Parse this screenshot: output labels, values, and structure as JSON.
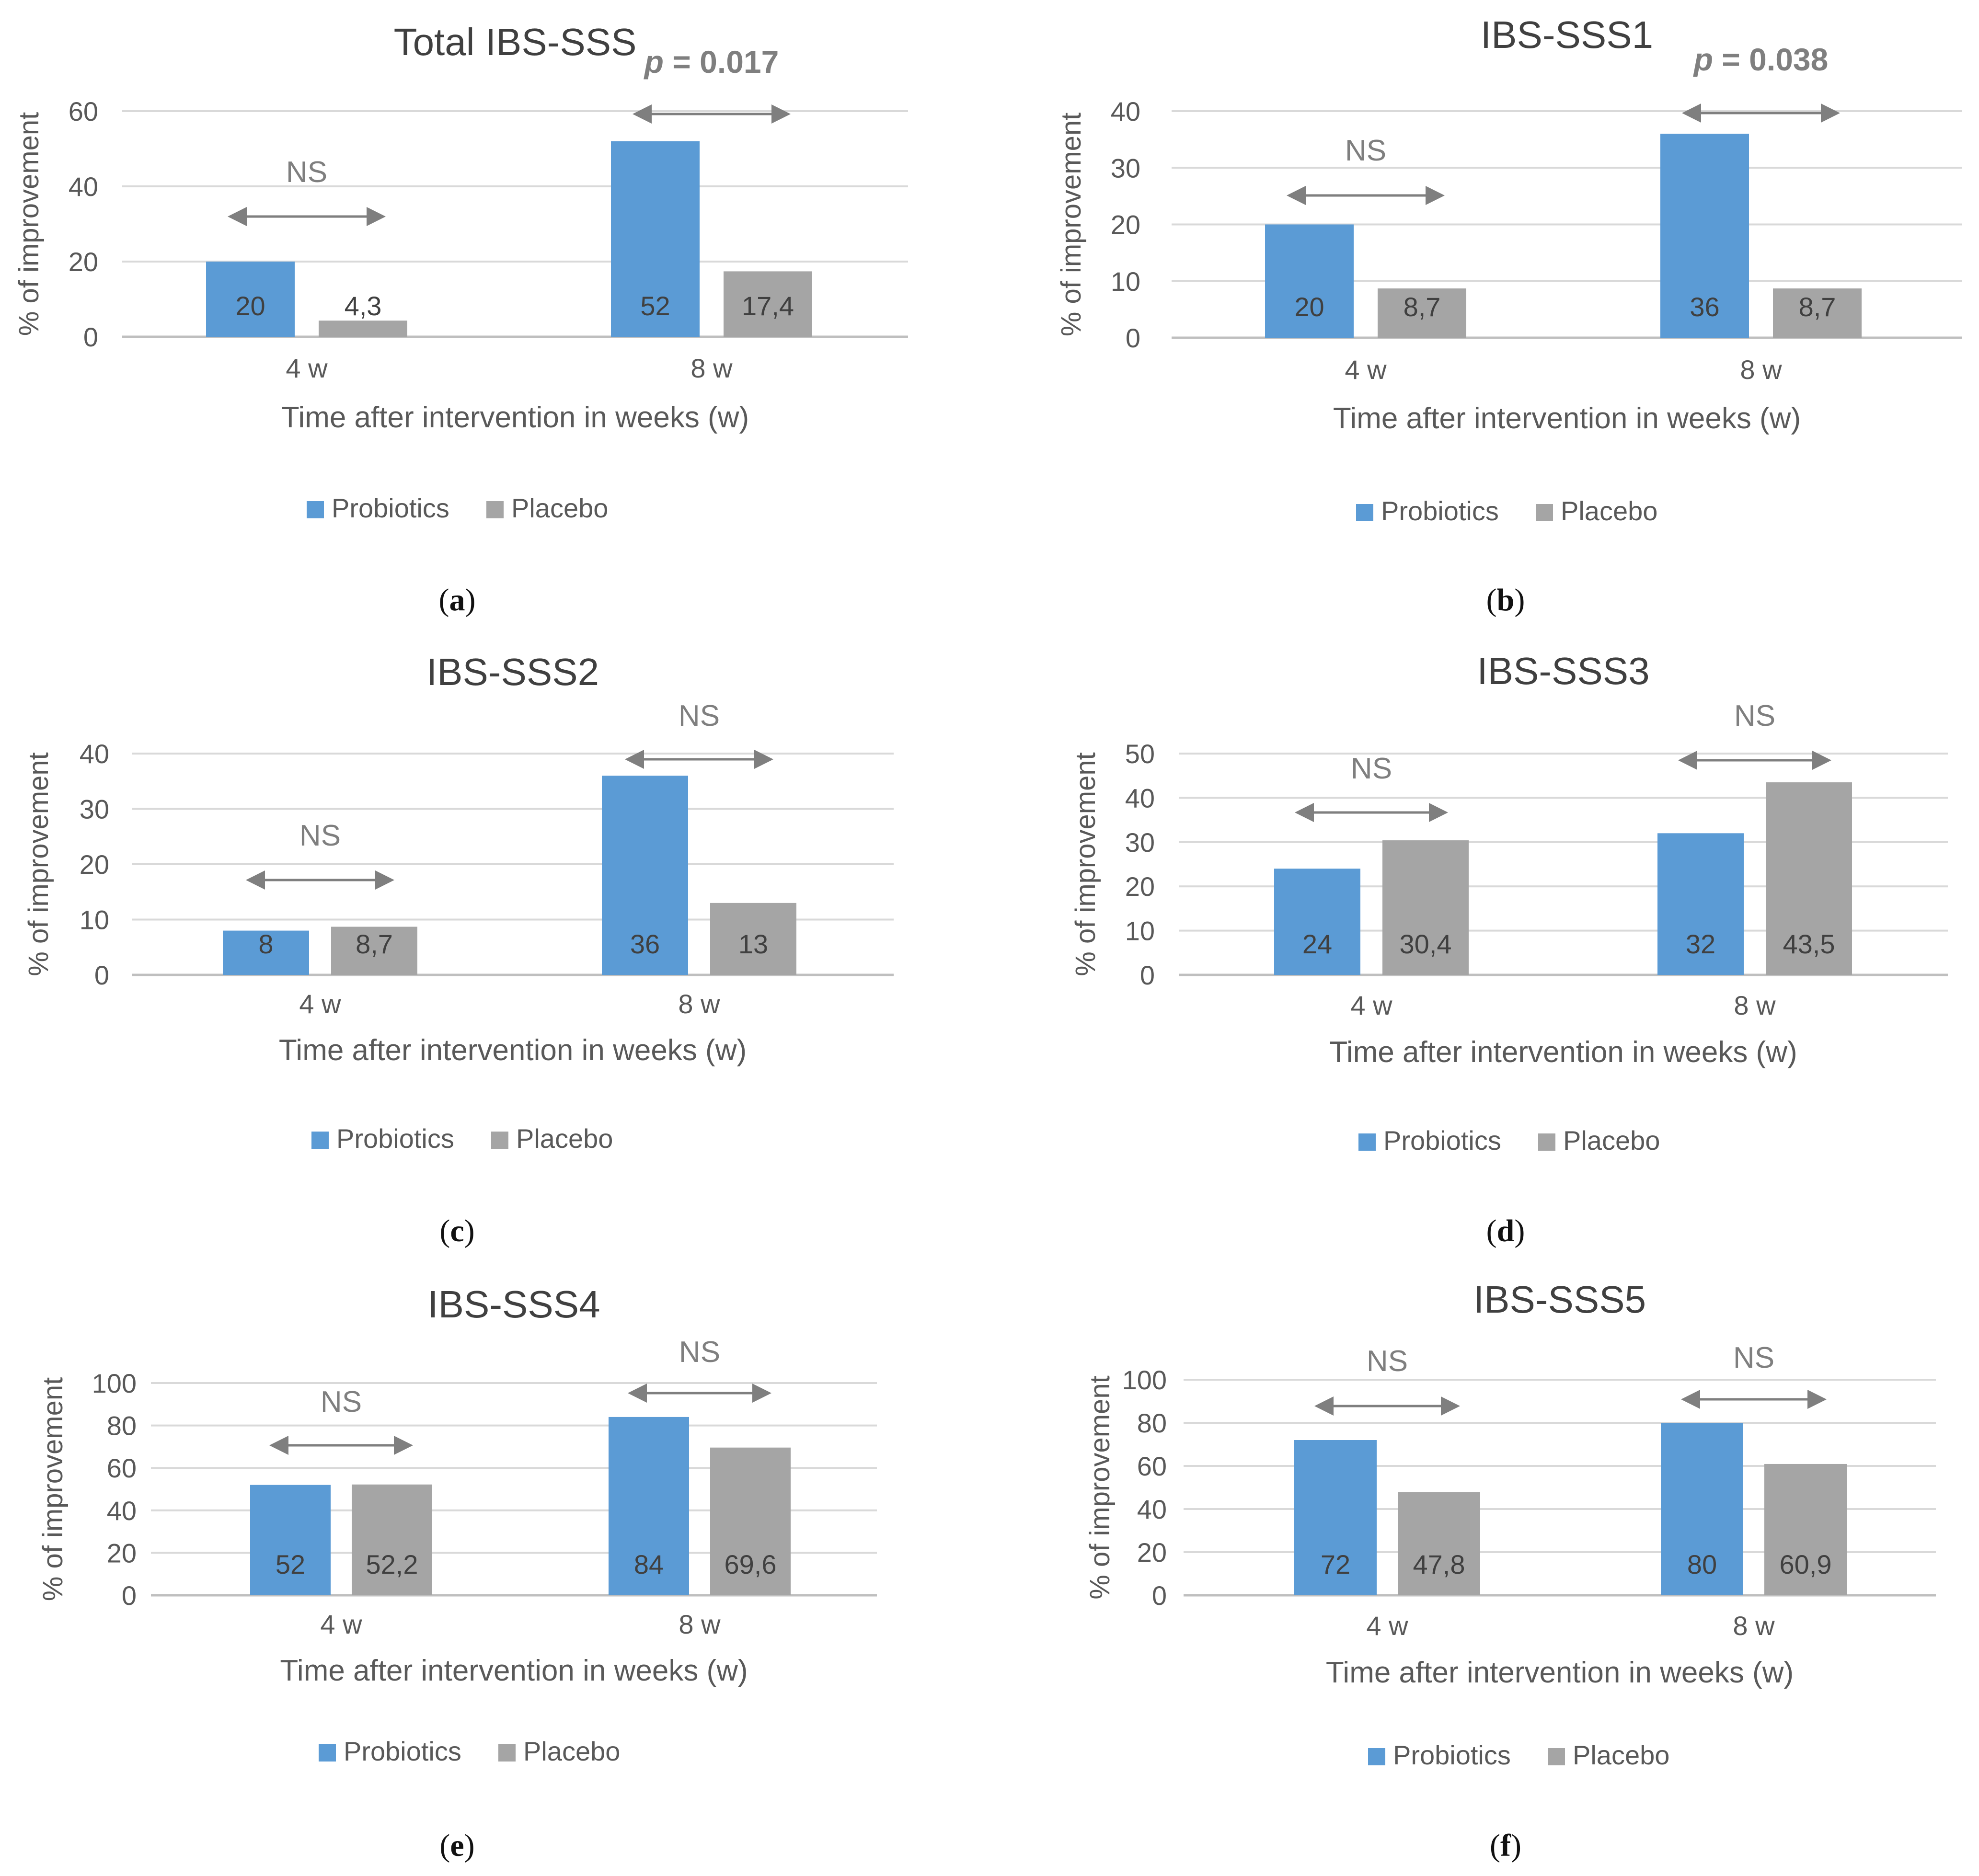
{
  "figure": {
    "panel_labels": [
      "a",
      "b",
      "c",
      "d",
      "e",
      "f"
    ]
  },
  "colors": {
    "probiotics": "#5b9bd5",
    "placebo": "#a5a5a5",
    "axis_text": "#595959",
    "grid": "#d9d9d9",
    "arrow": "#7f7f7f",
    "title": "#404040",
    "bar_label": "#404040"
  },
  "chart_data": [
    {
      "type": "bar",
      "title": "Total IBS-SSS",
      "xlabel": "Time after intervention in weeks (w)",
      "ylabel": "% of improvement",
      "categories": [
        "4 w",
        "8 w"
      ],
      "ylim": [
        0,
        60
      ],
      "yticks": [
        0,
        20,
        40,
        60
      ],
      "series": [
        {
          "name": "Probiotics",
          "values": [
            20,
            52
          ],
          "labels": [
            "20",
            "52"
          ]
        },
        {
          "name": "Placebo",
          "values": [
            4.3,
            17.4
          ],
          "labels": [
            "4,3",
            "17,4"
          ]
        }
      ],
      "annotations": [
        {
          "category": "4 w",
          "text": "NS"
        },
        {
          "category": "8 w",
          "text": "p = 0.017"
        }
      ],
      "legend": "bottom"
    },
    {
      "type": "bar",
      "title": "IBS-SSS1",
      "xlabel": "Time after intervention in weeks (w)",
      "ylabel": "% of improvement",
      "categories": [
        "4 w",
        "8 w"
      ],
      "ylim": [
        0,
        40
      ],
      "yticks": [
        0,
        10,
        20,
        30,
        40
      ],
      "series": [
        {
          "name": "Probiotics",
          "values": [
            20,
            36
          ],
          "labels": [
            "20",
            "36"
          ]
        },
        {
          "name": "Placebo",
          "values": [
            8.7,
            8.7
          ],
          "labels": [
            "8,7",
            "8,7"
          ]
        }
      ],
      "annotations": [
        {
          "category": "4 w",
          "text": "NS"
        },
        {
          "category": "8 w",
          "text": "p = 0.038"
        }
      ],
      "legend": "bottom"
    },
    {
      "type": "bar",
      "title": "IBS-SSS2",
      "xlabel": "Time after intervention in weeks (w)",
      "ylabel": "% of improvement",
      "categories": [
        "4 w",
        "8 w"
      ],
      "ylim": [
        0,
        40
      ],
      "yticks": [
        0,
        10,
        20,
        30,
        40
      ],
      "series": [
        {
          "name": "Probiotics",
          "values": [
            8,
            36
          ],
          "labels": [
            "8",
            "36"
          ]
        },
        {
          "name": "Placebo",
          "values": [
            8.7,
            13
          ],
          "labels": [
            "8,7",
            "13"
          ]
        }
      ],
      "annotations": [
        {
          "category": "4 w",
          "text": "NS"
        },
        {
          "category": "8 w",
          "text": "NS"
        }
      ],
      "legend": "bottom"
    },
    {
      "type": "bar",
      "title": "IBS-SSS3",
      "xlabel": "Time after intervention in weeks (w)",
      "ylabel": "% of improvement",
      "categories": [
        "4 w",
        "8 w"
      ],
      "ylim": [
        0,
        50
      ],
      "yticks": [
        0,
        10,
        20,
        30,
        40,
        50
      ],
      "series": [
        {
          "name": "Probiotics",
          "values": [
            24,
            32
          ],
          "labels": [
            "24",
            "32"
          ]
        },
        {
          "name": "Placebo",
          "values": [
            30.4,
            43.5
          ],
          "labels": [
            "30,4",
            "43,5"
          ]
        }
      ],
      "annotations": [
        {
          "category": "4 w",
          "text": "NS"
        },
        {
          "category": "8 w",
          "text": "NS"
        }
      ],
      "legend": "bottom"
    },
    {
      "type": "bar",
      "title": "IBS-SSS4",
      "xlabel": "Time after intervention in weeks (w)",
      "ylabel": "% of improvement",
      "categories": [
        "4 w",
        "8 w"
      ],
      "ylim": [
        0,
        100
      ],
      "yticks": [
        0,
        20,
        40,
        60,
        80,
        100
      ],
      "series": [
        {
          "name": "Probiotics",
          "values": [
            52,
            84
          ],
          "labels": [
            "52",
            "84"
          ]
        },
        {
          "name": "Placebo",
          "values": [
            52.2,
            69.6
          ],
          "labels": [
            "52,2",
            "69,6"
          ]
        }
      ],
      "annotations": [
        {
          "category": "4 w",
          "text": "NS"
        },
        {
          "category": "8 w",
          "text": "NS"
        }
      ],
      "legend": "bottom"
    },
    {
      "type": "bar",
      "title": "IBS-SSS5",
      "xlabel": "Time after intervention in weeks (w)",
      "ylabel": "% of improvement",
      "categories": [
        "4 w",
        "8 w"
      ],
      "ylim": [
        0,
        100
      ],
      "yticks": [
        0,
        20,
        40,
        60,
        80,
        100
      ],
      "series": [
        {
          "name": "Probiotics",
          "values": [
            72,
            80
          ],
          "labels": [
            "72",
            "80"
          ]
        },
        {
          "name": "Placebo",
          "values": [
            47.8,
            60.9
          ],
          "labels": [
            "47,8",
            "60,9"
          ]
        }
      ],
      "annotations": [
        {
          "category": "4 w",
          "text": "NS"
        },
        {
          "category": "8 w",
          "text": "NS"
        }
      ],
      "legend": "bottom"
    }
  ]
}
